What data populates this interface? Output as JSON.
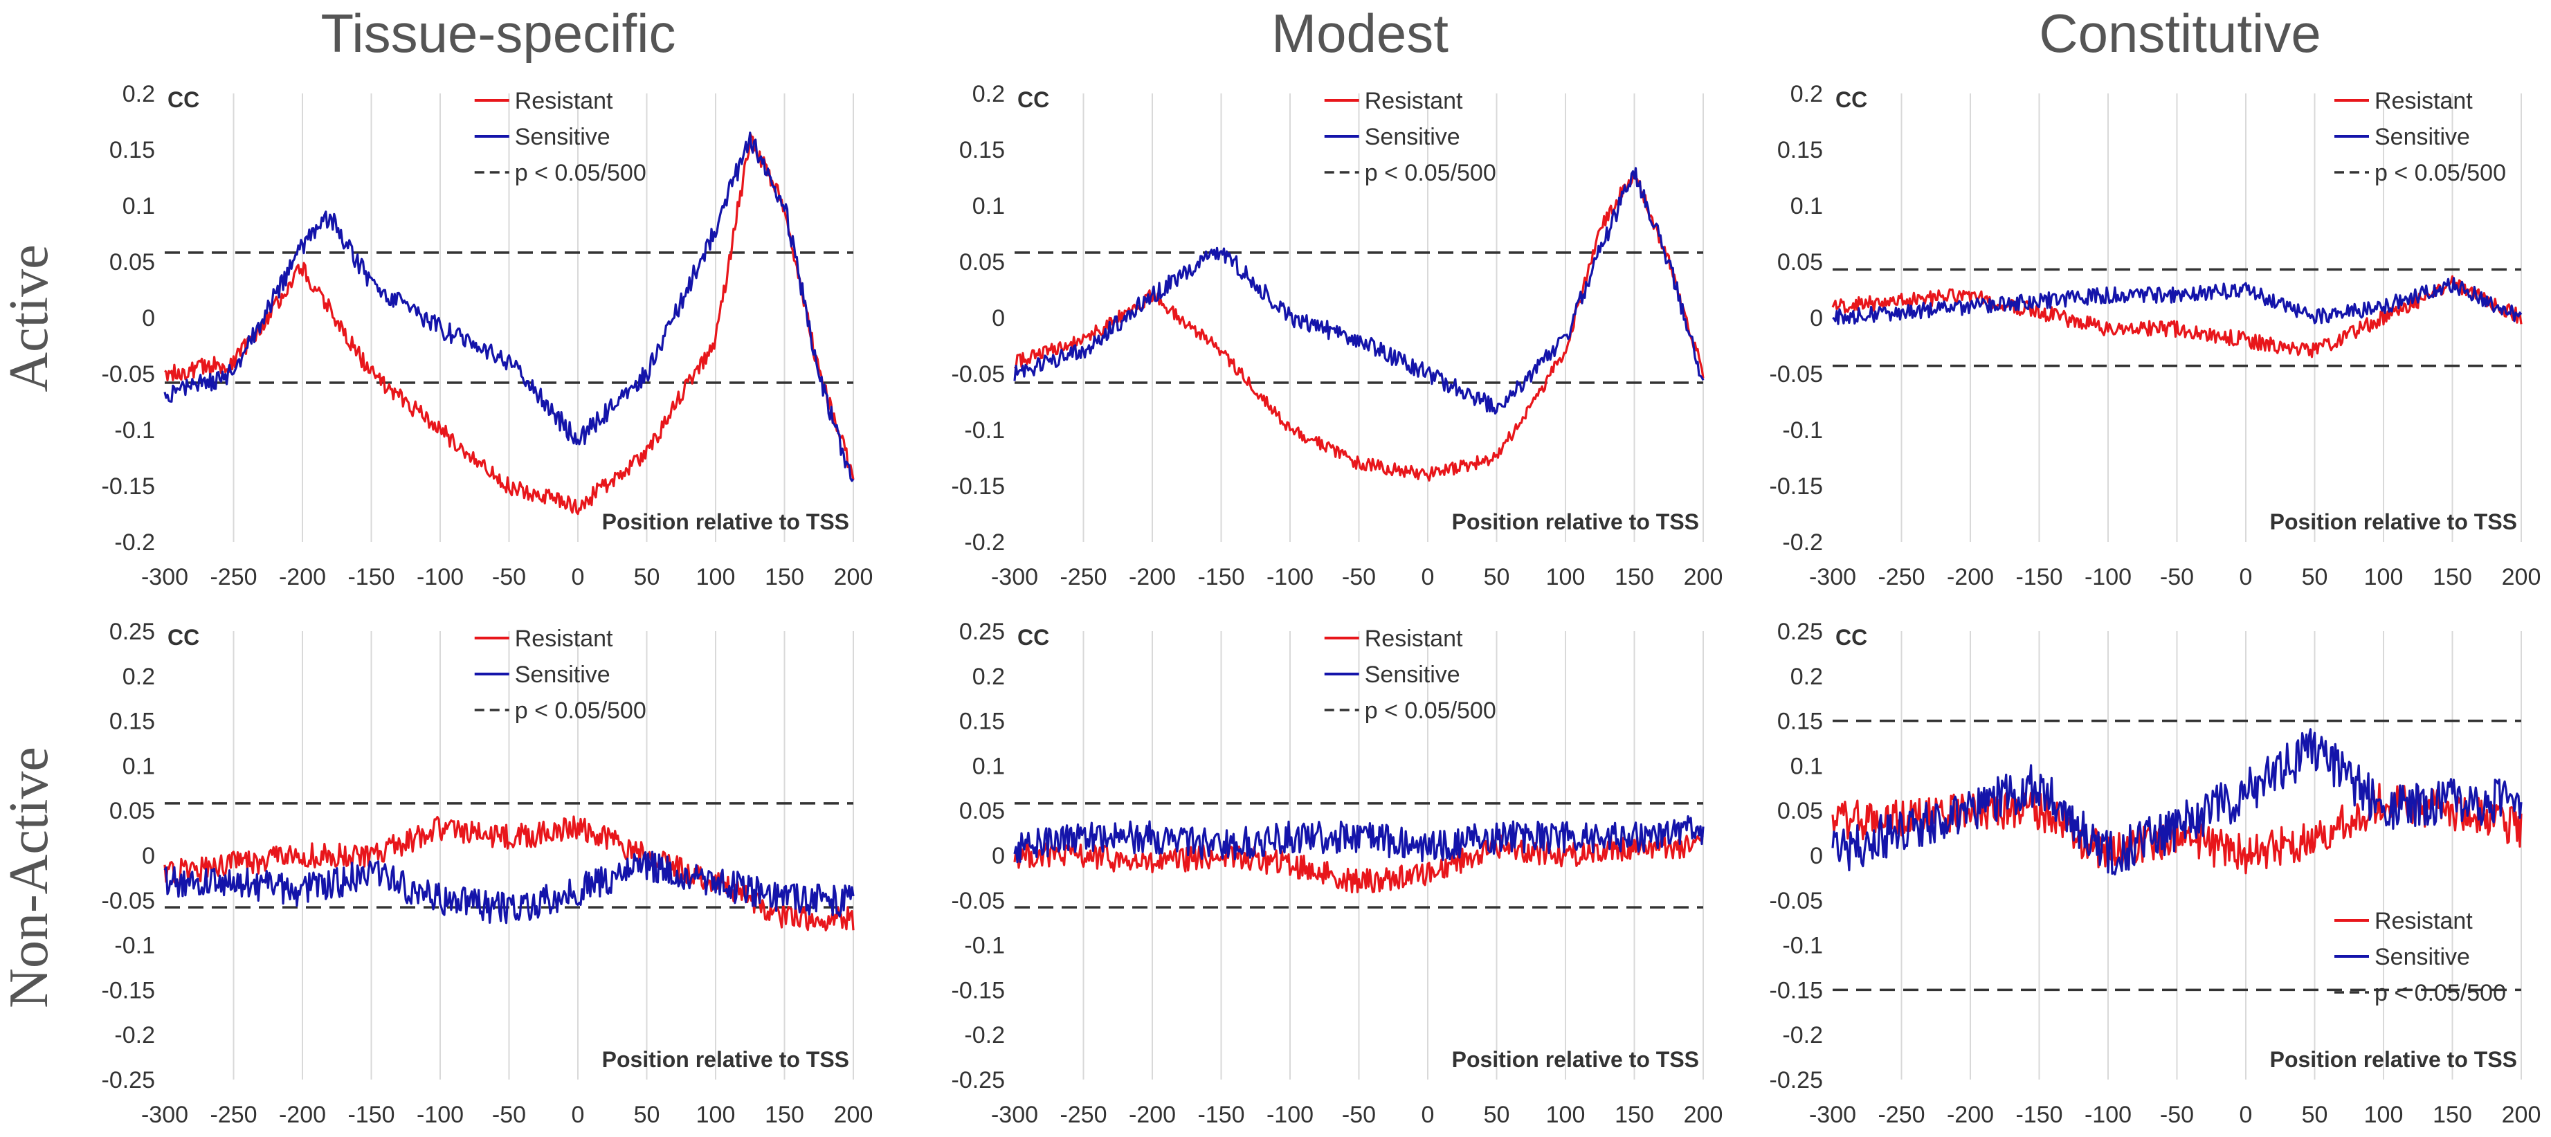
{
  "figure": {
    "col_titles": [
      "Tissue-specific",
      "Modest",
      "Constitutive"
    ],
    "row_titles": [
      "Active",
      "Non-Active"
    ],
    "colors": {
      "resistant": "#e8161b",
      "sensitive": "#1414aa",
      "threshold": "#333333",
      "grid": "#d9d9d9"
    }
  },
  "chart_data": [
    {
      "id": "active-tissue-specific",
      "type": "line",
      "row": "Active",
      "column": "Tissue-specific",
      "ylabel": "CC",
      "xlabel": "Position relative to TSS",
      "xlim": [
        -300,
        200
      ],
      "ylim": [
        -0.2,
        0.2
      ],
      "xticks": [
        -300,
        -250,
        -200,
        -150,
        -100,
        -50,
        0,
        50,
        100,
        150,
        200
      ],
      "yticks": [
        0.2,
        0.15,
        0.1,
        0.05,
        0,
        -0.05,
        -0.1,
        -0.15,
        -0.2
      ],
      "ytick_labels": [
        "0.2",
        "0.15",
        "0.1",
        "0.05",
        "0",
        "-0.05",
        "-0.1",
        "-0.15",
        "-0.2"
      ],
      "threshold": 0.058,
      "threshold_label": "p < 0.05/500",
      "legend_pos": "top-center",
      "noise": {
        "resistant": 0.008,
        "sensitive": 0.009
      },
      "series": [
        {
          "name": "Resistant",
          "x": [
            -300,
            -250,
            -200,
            -150,
            -100,
            -50,
            0,
            50,
            100,
            125,
            150,
            175,
            200
          ],
          "values": [
            -0.05,
            -0.04,
            0.045,
            -0.05,
            -0.1,
            -0.15,
            -0.17,
            -0.12,
            -0.02,
            0.16,
            0.1,
            -0.05,
            -0.14
          ]
        },
        {
          "name": "Sensitive",
          "x": [
            -300,
            -250,
            -200,
            -180,
            -150,
            -100,
            -50,
            0,
            50,
            100,
            125,
            150,
            175,
            200
          ],
          "values": [
            -0.07,
            -0.05,
            0.065,
            0.09,
            0.03,
            -0.01,
            -0.04,
            -0.11,
            -0.05,
            0.08,
            0.16,
            0.1,
            -0.05,
            -0.15
          ]
        }
      ]
    },
    {
      "id": "active-modest",
      "type": "line",
      "row": "Active",
      "column": "Modest",
      "ylabel": "CC",
      "xlabel": "Position relative to TSS",
      "xlim": [
        -300,
        200
      ],
      "ylim": [
        -0.2,
        0.2
      ],
      "xticks": [
        -300,
        -250,
        -200,
        -150,
        -100,
        -50,
        0,
        50,
        100,
        150,
        200
      ],
      "yticks": [
        0.2,
        0.15,
        0.1,
        0.05,
        0,
        -0.05,
        -0.1,
        -0.15,
        -0.2
      ],
      "ytick_labels": [
        "0.2",
        "0.15",
        "0.1",
        "0.05",
        "0",
        "-0.05",
        "-0.1",
        "-0.15",
        "-0.2"
      ],
      "threshold": 0.058,
      "threshold_label": "p < 0.05/500",
      "legend_pos": "top-center",
      "noise": {
        "resistant": 0.006,
        "sensitive": 0.008
      },
      "series": [
        {
          "name": "Resistant",
          "x": [
            -300,
            -250,
            -200,
            -150,
            -100,
            -50,
            0,
            50,
            100,
            125,
            150,
            175,
            200
          ],
          "values": [
            -0.04,
            -0.02,
            0.02,
            -0.03,
            -0.1,
            -0.13,
            -0.14,
            -0.125,
            -0.03,
            0.08,
            0.13,
            0.05,
            -0.05
          ]
        },
        {
          "name": "Sensitive",
          "x": [
            -300,
            -250,
            -200,
            -150,
            -100,
            -50,
            0,
            50,
            100,
            125,
            150,
            175,
            200
          ],
          "values": [
            -0.05,
            -0.03,
            0.02,
            0.06,
            0.0,
            -0.02,
            -0.05,
            -0.08,
            -0.02,
            0.06,
            0.13,
            0.05,
            -0.06
          ]
        }
      ]
    },
    {
      "id": "active-constitutive",
      "type": "line",
      "row": "Active",
      "column": "Constitutive",
      "ylabel": "CC",
      "xlabel": "Position relative to TSS",
      "xlim": [
        -300,
        200
      ],
      "ylim": [
        -0.2,
        0.2
      ],
      "xticks": [
        -300,
        -250,
        -200,
        -150,
        -100,
        -50,
        0,
        50,
        100,
        150,
        200
      ],
      "yticks": [
        0.2,
        0.15,
        0.1,
        0.05,
        0,
        -0.05,
        -0.1,
        -0.15,
        -0.2
      ],
      "ytick_labels": [
        "0.2",
        "0.15",
        "0.1",
        "0.05",
        "0",
        "-0.05",
        "-0.1",
        "-0.15",
        "-0.2"
      ],
      "threshold": 0.043,
      "threshold_label": "p < 0.05/500",
      "legend_pos": "top-right",
      "noise": {
        "resistant": 0.007,
        "sensitive": 0.007
      },
      "series": [
        {
          "name": "Resistant",
          "x": [
            -300,
            -200,
            -100,
            -50,
            0,
            50,
            100,
            150,
            200
          ],
          "values": [
            0.01,
            0.02,
            -0.01,
            -0.01,
            -0.02,
            -0.03,
            0.0,
            0.03,
            0.0
          ]
        },
        {
          "name": "Sensitive",
          "x": [
            -300,
            -200,
            -100,
            -50,
            0,
            50,
            100,
            150,
            200
          ],
          "values": [
            0.0,
            0.01,
            0.02,
            0.02,
            0.025,
            0.0,
            0.01,
            0.03,
            0.0
          ]
        }
      ]
    },
    {
      "id": "nonactive-tissue-specific",
      "type": "line",
      "row": "Non-Active",
      "column": "Tissue-specific",
      "ylabel": "CC",
      "xlabel": "Position relative to TSS",
      "xlim": [
        -300,
        200
      ],
      "ylim": [
        -0.25,
        0.25
      ],
      "xticks": [
        -300,
        -250,
        -200,
        -150,
        -100,
        -50,
        0,
        50,
        100,
        150,
        200
      ],
      "yticks": [
        0.25,
        0.2,
        0.15,
        0.1,
        0.05,
        0,
        -0.05,
        -0.1,
        -0.15,
        -0.2,
        -0.25
      ],
      "ytick_labels": [
        "0.25",
        "0.2",
        "0.15",
        "0.1",
        "0.05",
        "0",
        "-0.05",
        "-0.1",
        "-0.15",
        "-0.2",
        "-0.25"
      ],
      "threshold": 0.058,
      "threshold_label": "p < 0.05/500",
      "legend_pos": "top-center",
      "noise": {
        "resistant": 0.014,
        "sensitive": 0.018
      },
      "series": [
        {
          "name": "Resistant",
          "x": [
            -300,
            -250,
            -200,
            -150,
            -100,
            -50,
            0,
            50,
            100,
            150,
            200
          ],
          "values": [
            -0.02,
            -0.01,
            0.0,
            0.0,
            0.03,
            0.02,
            0.03,
            0.0,
            -0.03,
            -0.07,
            -0.07
          ]
        },
        {
          "name": "Sensitive",
          "x": [
            -300,
            -250,
            -200,
            -150,
            -100,
            -50,
            0,
            50,
            100,
            150,
            200
          ],
          "values": [
            -0.03,
            -0.03,
            -0.04,
            -0.02,
            -0.05,
            -0.06,
            -0.04,
            -0.01,
            -0.03,
            -0.05,
            -0.05
          ]
        }
      ]
    },
    {
      "id": "nonactive-modest",
      "type": "line",
      "row": "Non-Active",
      "column": "Modest",
      "ylabel": "CC",
      "xlabel": "Position relative to TSS",
      "xlim": [
        -300,
        200
      ],
      "ylim": [
        -0.25,
        0.25
      ],
      "xticks": [
        -300,
        -250,
        -200,
        -150,
        -100,
        -50,
        0,
        50,
        100,
        150,
        200
      ],
      "yticks": [
        0.25,
        0.2,
        0.15,
        0.1,
        0.05,
        0,
        -0.05,
        -0.1,
        -0.15,
        -0.2,
        -0.25
      ],
      "ytick_labels": [
        "0.25",
        "0.2",
        "0.15",
        "0.1",
        "0.05",
        "0",
        "-0.05",
        "-0.1",
        "-0.15",
        "-0.2",
        "-0.25"
      ],
      "threshold": 0.058,
      "threshold_label": "p < 0.05/500",
      "legend_pos": "top-center",
      "noise": {
        "resistant": 0.014,
        "sensitive": 0.018
      },
      "series": [
        {
          "name": "Resistant",
          "x": [
            -300,
            -250,
            -200,
            -150,
            -100,
            -50,
            0,
            50,
            100,
            150,
            200
          ],
          "values": [
            0.0,
            0.0,
            -0.01,
            0.0,
            -0.01,
            -0.03,
            -0.02,
            0.01,
            0.0,
            0.01,
            0.01
          ]
        },
        {
          "name": "Sensitive",
          "x": [
            -300,
            -250,
            -200,
            -150,
            -100,
            -50,
            0,
            50,
            100,
            150,
            200
          ],
          "values": [
            0.01,
            0.02,
            0.02,
            0.01,
            0.02,
            0.02,
            0.01,
            0.02,
            0.02,
            0.02,
            0.03
          ]
        }
      ]
    },
    {
      "id": "nonactive-constitutive",
      "type": "line",
      "row": "Non-Active",
      "column": "Constitutive",
      "ylabel": "CC",
      "xlabel": "Position relative to TSS",
      "xlim": [
        -300,
        200
      ],
      "ylim": [
        -0.25,
        0.25
      ],
      "xticks": [
        -300,
        -250,
        -200,
        -150,
        -100,
        -50,
        0,
        50,
        100,
        150,
        200
      ],
      "yticks": [
        0.25,
        0.2,
        0.15,
        0.1,
        0.05,
        0,
        -0.05,
        -0.1,
        -0.15,
        -0.2,
        -0.25
      ],
      "ytick_labels": [
        "0.25",
        "0.2",
        "0.15",
        "0.1",
        "0.05",
        "0",
        "-0.05",
        "-0.1",
        "-0.15",
        "-0.2",
        "-0.25"
      ],
      "threshold": 0.15,
      "threshold_label": "p < 0.05/500",
      "legend_pos": "bottom-right",
      "noise": {
        "resistant": 0.022,
        "sensitive": 0.026
      },
      "series": [
        {
          "name": "Resistant",
          "x": [
            -300,
            -250,
            -200,
            -150,
            -100,
            -50,
            0,
            50,
            100,
            150,
            200
          ],
          "values": [
            0.04,
            0.04,
            0.05,
            0.05,
            0.0,
            0.02,
            0.0,
            0.02,
            0.06,
            0.05,
            0.03
          ]
        },
        {
          "name": "Sensitive",
          "x": [
            -300,
            -250,
            -200,
            -150,
            -100,
            -50,
            0,
            50,
            100,
            150,
            200
          ],
          "values": [
            0.0,
            0.03,
            0.05,
            0.08,
            0.0,
            0.03,
            0.07,
            0.12,
            0.05,
            0.06,
            0.06
          ]
        }
      ]
    }
  ]
}
